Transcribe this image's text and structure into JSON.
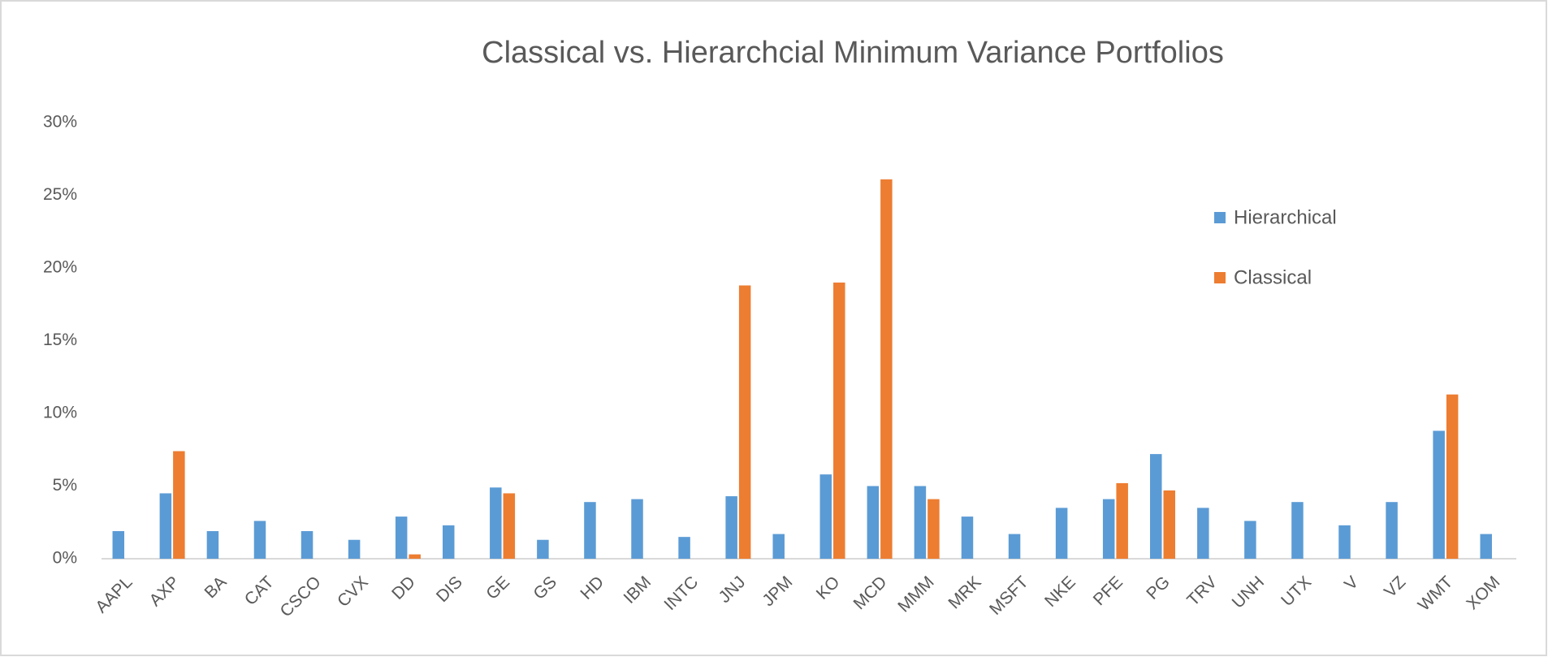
{
  "chart_data": {
    "type": "bar",
    "title": "Classical vs. Hierarchcial Minimum  Variance Portfolios",
    "categories": [
      "AAPL",
      "AXP",
      "BA",
      "CAT",
      "CSCO",
      "CVX",
      "DD",
      "DIS",
      "GE",
      "GS",
      "HD",
      "IBM",
      "INTC",
      "JNJ",
      "JPM",
      "KO",
      "MCD",
      "MMM",
      "MRK",
      "MSFT",
      "NKE",
      "PFE",
      "PG",
      "TRV",
      "UNH",
      "UTX",
      "V",
      "VZ",
      "WMT",
      "XOM"
    ],
    "series": [
      {
        "name": "Hierarchical",
        "color": "#5b9bd5",
        "values": [
          1.9,
          4.5,
          1.9,
          2.6,
          1.9,
          1.3,
          2.9,
          2.3,
          4.9,
          1.3,
          3.9,
          4.1,
          1.5,
          4.3,
          1.7,
          5.8,
          5.0,
          5.0,
          2.9,
          1.7,
          3.5,
          4.1,
          7.2,
          3.5,
          2.6,
          3.9,
          2.3,
          3.9,
          8.8,
          1.7
        ]
      },
      {
        "name": "Classical",
        "color": "#ed7d31",
        "values": [
          0,
          7.4,
          0,
          0,
          0,
          0,
          0.3,
          0,
          4.5,
          0,
          0,
          0,
          0,
          18.8,
          0,
          19.0,
          26.1,
          4.1,
          0,
          0,
          0,
          5.2,
          4.7,
          0,
          0,
          0,
          0,
          0,
          11.3,
          0
        ]
      }
    ],
    "ylim": [
      0,
      30
    ],
    "yticks": [
      {
        "value": 0,
        "label": "0%"
      },
      {
        "value": 5,
        "label": "5%"
      },
      {
        "value": 10,
        "label": "10%"
      },
      {
        "value": 15,
        "label": "15%"
      },
      {
        "value": 20,
        "label": "20%"
      },
      {
        "value": 25,
        "label": "25%"
      },
      {
        "value": 30,
        "label": "30%"
      }
    ],
    "grid": false,
    "legend": "right"
  }
}
